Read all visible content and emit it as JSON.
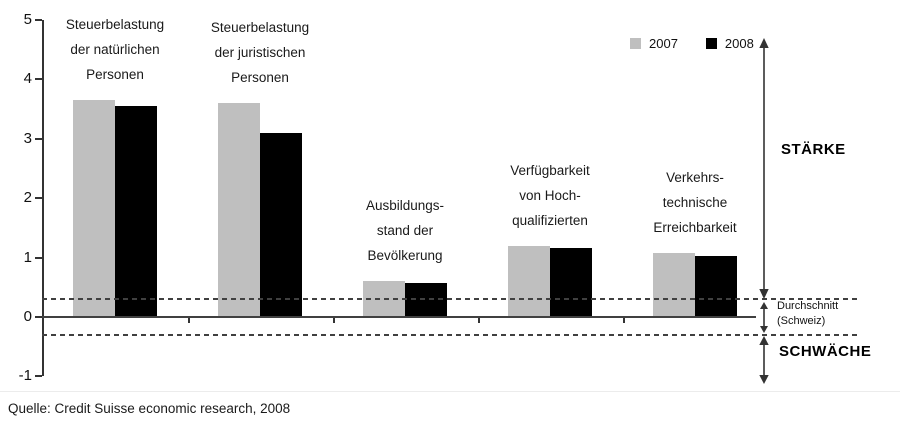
{
  "chart_data": {
    "type": "bar",
    "title": "",
    "categories": [
      "Steuerbelastung der natürlichen Personen",
      "Steuerbelastung der juristischen Personen",
      "Ausbildungsstand der Bevölkerung",
      "Verfügbarkeit von Hochqualifizierten",
      "Verkehrstechnische Erreichbarkeit"
    ],
    "category_label_lines": [
      [
        "Steuerbelastung",
        "der natürlichen",
        "Personen"
      ],
      [
        "Steuerbelastung",
        "der juristischen",
        "Personen"
      ],
      [
        "Ausbildungs-",
        "stand der",
        "Bevölkerung"
      ],
      [
        "Verfügbarkeit",
        "von Hoch-",
        "qualifizierten"
      ],
      [
        "Verkehrs-",
        "technische",
        "Erreichbarkeit"
      ]
    ],
    "series": [
      {
        "name": "2007",
        "color": "#bfbfbf",
        "values": [
          3.65,
          3.6,
          0.6,
          1.2,
          1.08
        ]
      },
      {
        "name": "2008",
        "color": "#000000",
        "values": [
          3.55,
          3.1,
          0.57,
          1.16,
          1.03
        ]
      }
    ],
    "ylim": [
      -1,
      5
    ],
    "yticks": [
      5,
      4,
      3,
      2,
      1,
      0,
      -1
    ],
    "reference_lines": [
      0.3,
      -0.3
    ],
    "grid": false,
    "legend_position": "top-right"
  },
  "annotations": {
    "strength": "STÄRKE",
    "average": [
      "Durchschnitt",
      "(Schweiz)"
    ],
    "weakness": "SCHWÄCHE"
  },
  "source": {
    "text": "Quelle: Credit Suisse economic research, 2008"
  }
}
